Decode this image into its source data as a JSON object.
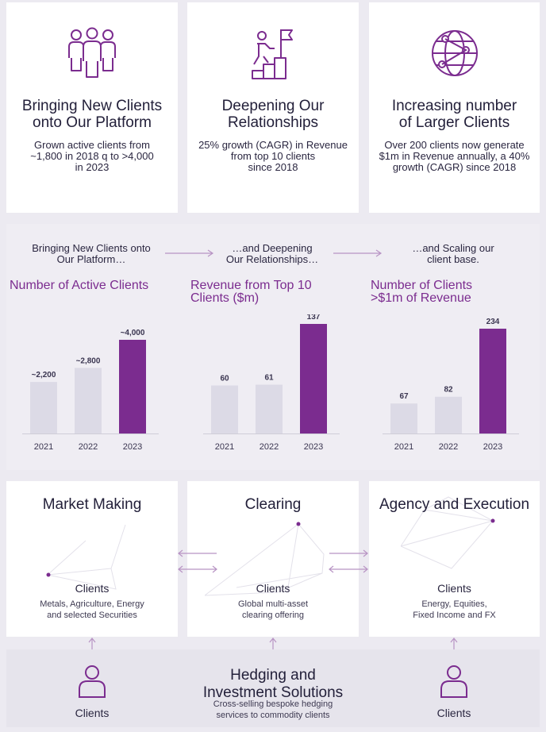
{
  "colors": {
    "accent": "#7b2c8f",
    "bar_light": "#dcdae6",
    "bar_accent": "#7b2c8f",
    "background": "#eceaf1"
  },
  "pillars": [
    {
      "icon": "people-group-icon",
      "title_1": "Bringing New Clients",
      "title_2": "onto Our Platform",
      "desc_1": "Grown active clients from",
      "desc_2": "~1,800 in 2018 q to >4,000",
      "desc_3": "in 2023"
    },
    {
      "icon": "person-climbing-to-flag-icon",
      "title_1": "Deepening Our",
      "title_2": "Relationships",
      "desc_1": "25% growth (CAGR) in Revenue",
      "desc_2": "from top 10 clients",
      "desc_3": "since 2018"
    },
    {
      "icon": "globe-network-icon",
      "title_1": "Increasing number",
      "title_2": "of Larger Clients",
      "desc_1": "Over 200 clients now generate",
      "desc_2": "$1m in Revenue annually, a 40%",
      "desc_3": "growth (CAGR) since 2018"
    }
  ],
  "flow": [
    {
      "line_1": "Bringing New Clients onto",
      "line_2": "Our Platform…"
    },
    {
      "line_1": "…and Deepening",
      "line_2": "Our Relationships…"
    },
    {
      "line_1": "…and Scaling our",
      "line_2": "client base."
    }
  ],
  "chart_data": [
    {
      "type": "bar",
      "title": "Number of Active Clients",
      "categories": [
        "2021",
        "2022",
        "2023"
      ],
      "values": [
        2200,
        2800,
        4000
      ],
      "data_labels": [
        "~2,200",
        "~2,800",
        "~4,000"
      ],
      "highlight_index": 2,
      "ylim": [
        0,
        4000
      ],
      "grid": false
    },
    {
      "type": "bar",
      "title_1": "Revenue from Top 10",
      "title_2": "Clients ($m)",
      "categories": [
        "2021",
        "2022",
        "2023"
      ],
      "values": [
        60,
        61,
        137
      ],
      "data_labels": [
        "60",
        "61",
        "137"
      ],
      "highlight_index": 2,
      "ylim": [
        0,
        137
      ],
      "grid": false
    },
    {
      "type": "bar",
      "title_1": "Number of Clients",
      "title_2": ">$1m of Revenue",
      "categories": [
        "2021",
        "2022",
        "2023"
      ],
      "values": [
        67,
        82,
        234
      ],
      "data_labels": [
        "67",
        "82",
        "234"
      ],
      "highlight_index": 2,
      "ylim": [
        0,
        234
      ],
      "grid": false
    }
  ],
  "services": [
    {
      "title": "Market Making",
      "sub": "Clients",
      "desc_1": "Metals, Agriculture, Energy",
      "desc_2": "and selected Securities"
    },
    {
      "title": "Clearing",
      "sub": "Clients",
      "desc_1": "Global multi-asset",
      "desc_2": "clearing offering"
    },
    {
      "title": "Agency and Execution",
      "sub": "Clients",
      "desc_1": "Energy, Equities,",
      "desc_2": "Fixed Income and FX"
    }
  ],
  "hedging": {
    "title_1": "Hedging and",
    "title_2": "Investment Solutions",
    "desc_1": "Cross-selling bespoke hedging",
    "desc_2": "services to commodity clients",
    "left_label": "Clients",
    "right_label": "Clients",
    "icon": "person-icon"
  }
}
